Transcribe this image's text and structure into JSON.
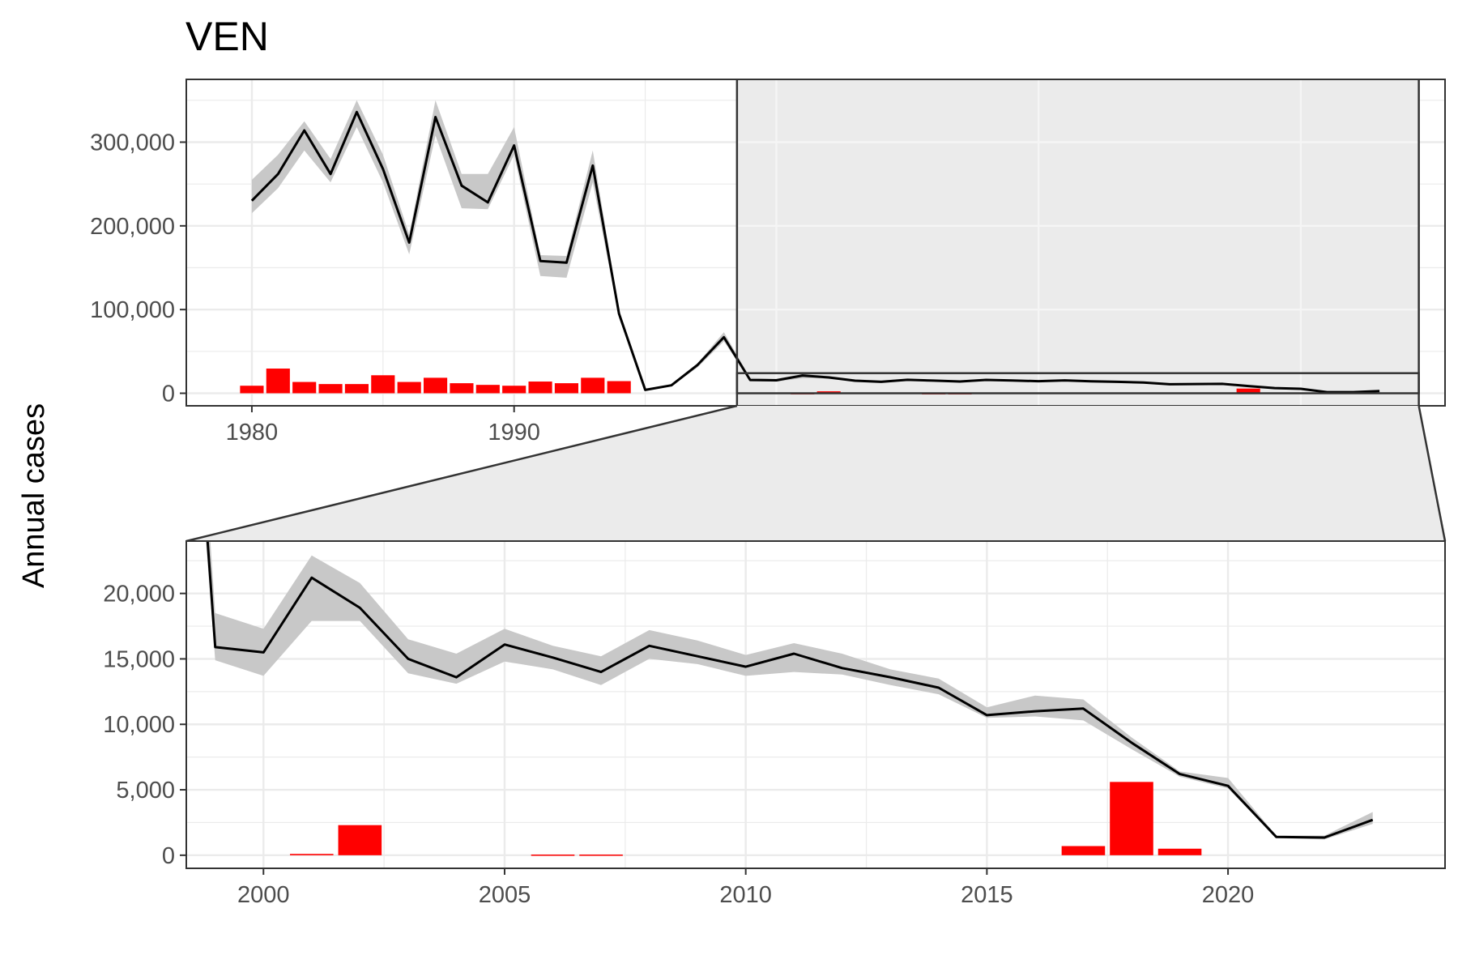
{
  "chart_data": {
    "type": "line",
    "title": "VEN",
    "ylabel": "Annual cases",
    "xlabel": "",
    "colors": {
      "line": "#000000",
      "ribbon": "#c8c8c8",
      "bars": "#ff0000",
      "zoom_fill": "#ebebeb",
      "grid": "#ebebeb",
      "frame": "#333333"
    },
    "legend": "none",
    "grid": true,
    "main_panel": {
      "xlim": [
        1977.5,
        2025.5
      ],
      "ylim": [
        -15000,
        375000
      ],
      "xticks": [
        1980,
        1990,
        2000,
        2010,
        2020
      ],
      "xtick_labels": [
        "1980",
        "1990",
        "2000",
        "2010",
        "2020"
      ],
      "yticks": [
        0,
        100000,
        200000,
        300000
      ],
      "ytick_labels": [
        "0",
        "100,000",
        "200,000",
        "300,000"
      ],
      "zoom_region": {
        "x": [
          1998.5,
          2024.5
        ],
        "y": [
          0,
          24000
        ]
      }
    },
    "zoom_panel": {
      "xlim": [
        1998.4,
        2024.5
      ],
      "ylim": [
        -1000,
        24000
      ],
      "xticks": [
        2000,
        2005,
        2010,
        2015,
        2020
      ],
      "xtick_labels": [
        "2000",
        "2005",
        "2010",
        "2015",
        "2020"
      ],
      "yticks": [
        0,
        5000,
        10000,
        15000,
        20000
      ],
      "ytick_labels": [
        "0",
        "5,000",
        "10,000",
        "15,000",
        "20,000"
      ]
    },
    "series": [
      {
        "kind": "line_with_ribbon",
        "x": [
          1980,
          1981,
          1982,
          1983,
          1984,
          1985,
          1986,
          1987,
          1988,
          1989,
          1990,
          1991,
          1992,
          1993,
          1994,
          1995,
          1996,
          1997,
          1998,
          1999,
          2000,
          2001,
          2002,
          2003,
          2004,
          2005,
          2006,
          2007,
          2008,
          2009,
          2010,
          2011,
          2012,
          2013,
          2014,
          2015,
          2016,
          2017,
          2018,
          2019,
          2020,
          2021,
          2022,
          2023
        ],
        "y": [
          230000,
          262000,
          314000,
          262000,
          336000,
          268000,
          180000,
          330000,
          248000,
          228000,
          296000,
          158000,
          156000,
          272000,
          95000,
          4000,
          9500,
          34000,
          67000,
          15900,
          15500,
          21200,
          18900,
          15000,
          13600,
          16100,
          15100,
          14000,
          16000,
          15200,
          14400,
          15400,
          14300,
          13600,
          12800,
          10700,
          11000,
          11200,
          8600,
          6200,
          5300,
          1400,
          1350,
          2700
        ],
        "upper": [
          255000,
          285000,
          325000,
          280000,
          350000,
          285000,
          190000,
          350000,
          262000,
          262000,
          318000,
          165000,
          164000,
          290000,
          100000,
          4500,
          10500,
          36000,
          73000,
          18500,
          17300,
          22900,
          20800,
          16500,
          15400,
          17300,
          16000,
          15200,
          17200,
          16400,
          15300,
          16200,
          15400,
          14200,
          13500,
          11300,
          12200,
          11900,
          9000,
          6400,
          5900,
          1500,
          1500,
          3300
        ],
        "lower": [
          215000,
          245000,
          290000,
          252000,
          318000,
          252000,
          166000,
          308000,
          221000,
          220000,
          285000,
          140000,
          138000,
          252000,
          90000,
          3500,
          8500,
          31000,
          62000,
          14900,
          13700,
          17900,
          17900,
          13900,
          13100,
          14800,
          14200,
          13000,
          15000,
          14600,
          13700,
          14000,
          13800,
          13000,
          12300,
          10500,
          10600,
          10300,
          8100,
          6000,
          5100,
          1300,
          1200,
          2400
        ]
      },
      {
        "kind": "bar",
        "x": [
          1980,
          1981,
          1982,
          1983,
          1984,
          1985,
          1986,
          1987,
          1988,
          1989,
          1990,
          1991,
          1992,
          1993,
          1994,
          2001,
          2002,
          2006,
          2007,
          2017,
          2018,
          2019
        ],
        "values": [
          9000,
          29500,
          13500,
          11000,
          11000,
          21500,
          13500,
          18500,
          12000,
          10000,
          9000,
          14000,
          12000,
          18500,
          14500,
          100,
          2300,
          50,
          50,
          700,
          5600,
          500
        ]
      }
    ]
  }
}
